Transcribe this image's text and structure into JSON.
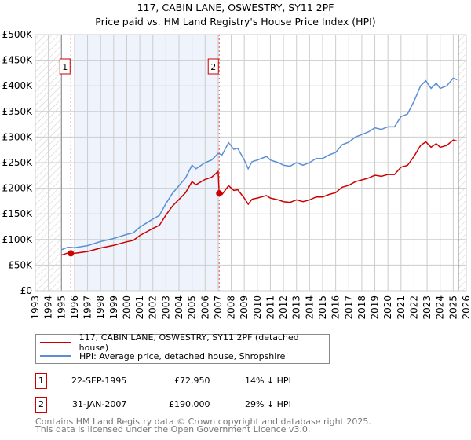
{
  "chart_data": {
    "type": "line",
    "title": "117, CABIN LANE, OSWESTRY, SY11 2PF",
    "subtitle": "Price paid vs. HM Land Registry's House Price Index (HPI)",
    "xlim": [
      1993,
      2026
    ],
    "ylim": [
      0,
      500000
    ],
    "y_ticks": [
      "£0",
      "£50K",
      "£100K",
      "£150K",
      "£200K",
      "£250K",
      "£300K",
      "£350K",
      "£400K",
      "£450K",
      "£500K"
    ],
    "x_ticks": [
      "1993",
      "1994",
      "1995",
      "1996",
      "1997",
      "1998",
      "1999",
      "2000",
      "2001",
      "2002",
      "2003",
      "2004",
      "2005",
      "2006",
      "2007",
      "2008",
      "2009",
      "2010",
      "2011",
      "2012",
      "2013",
      "2014",
      "2015",
      "2016",
      "2017",
      "2018",
      "2019",
      "2020",
      "2021",
      "2022",
      "2023",
      "2024",
      "2025",
      "2026"
    ],
    "grid": true,
    "hpi_x": [
      1995.0,
      1995.5,
      1996,
      1997,
      1998,
      1999,
      2000,
      2000.5,
      2001,
      2001.5,
      2002,
      2002.5,
      2003,
      2003.5,
      2004,
      2004.5,
      2005,
      2005.3,
      2006,
      2006.5,
      2007,
      2007.3,
      2007.8,
      2008.2,
      2008.5,
      2009,
      2009.3,
      2009.6,
      2010,
      2010.7,
      2011,
      2011.6,
      2012,
      2012.5,
      2013,
      2013.5,
      2014,
      2014.5,
      2015,
      2015.5,
      2016,
      2016.5,
      2017,
      2017.5,
      2018,
      2018.5,
      2019,
      2019.5,
      2020,
      2020.5,
      2021,
      2021.5,
      2022,
      2022.5,
      2022.9,
      2023.3,
      2023.7,
      2024,
      2024.5,
      2025,
      2025.3
    ],
    "hpi_y": [
      80,
      85,
      84,
      88,
      96,
      102,
      110,
      113,
      124,
      132,
      140,
      147,
      170,
      190,
      205,
      220,
      245,
      238,
      250,
      255,
      268,
      265,
      289,
      276,
      278,
      255,
      238,
      252,
      255,
      262,
      255,
      250,
      245,
      243,
      250,
      245,
      250,
      258,
      258,
      265,
      270,
      285,
      290,
      300,
      305,
      310,
      318,
      315,
      320,
      320,
      340,
      345,
      370,
      400,
      410,
      395,
      405,
      395,
      400,
      415,
      412
    ],
    "series": [
      {
        "name": "117, CABIN LANE, OSWESTRY, SY11 2PF (detached house)",
        "color": "#cc0000"
      },
      {
        "name": "HPI: Average price, detached house, Shropshire",
        "color": "#5b8fd4"
      }
    ],
    "sales": [
      {
        "label": "1",
        "x": 1995.72,
        "y": 72950,
        "date": "22-SEP-1995",
        "price": "£72,950",
        "hpi": "14% ↓ HPI"
      },
      {
        "label": "2",
        "x": 2007.08,
        "y": 190000,
        "date": "31-JAN-2007",
        "price": "£190,000",
        "hpi": "29% ↓ HPI"
      }
    ]
  },
  "footer": {
    "line1": "Contains HM Land Registry data © Crown copyright and database right 2025.",
    "line2": "This data is licensed under the Open Government Licence v3.0."
  }
}
